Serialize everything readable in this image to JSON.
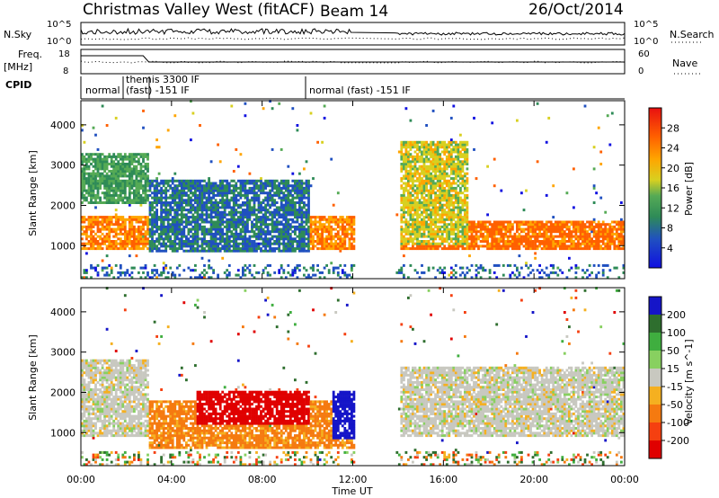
{
  "header": {
    "station": "Christmas Valley West (fitACF)",
    "beam": "Beam 14",
    "date": "26/Oct/2014"
  },
  "strips": {
    "nsky_label": "N.Sky",
    "nsearch_label": "N.Search",
    "nsky_ticks": [
      "10^5",
      "10^0"
    ],
    "nsearch_ticks": [
      "10^5",
      "10^0"
    ],
    "freq_label_1": "Freq.",
    "freq_label_2": "[MHz]",
    "freq_ticks": [
      "18",
      "8"
    ],
    "nave_label": "Nave",
    "nave_ticks": [
      "60",
      "0"
    ],
    "cpid_label": "CPID",
    "cpid_segments": [
      {
        "text": "normal",
        "start": 0.0,
        "end": 1.9
      },
      {
        "text": "themis 3300 IF",
        "start": 1.9,
        "end": 3.1
      },
      {
        "text": "(fast) -151 IF",
        "start": 1.9,
        "end": 3.1
      },
      {
        "text": "normal (fast) -151 IF",
        "start": 9.9,
        "end": 24.0
      }
    ]
  },
  "chart_data": [
    {
      "type": "heatmap",
      "title": "",
      "xlabel": "Time UT",
      "ylabel": "Slant Range [km]",
      "xlim": [
        0,
        24
      ],
      "ylim": [
        180,
        4600
      ],
      "x_ticks": [
        "00:00",
        "04:00",
        "08:00",
        "12:00",
        "16:00",
        "20:00",
        "00:00"
      ],
      "y_ticks": [
        1000,
        2000,
        3000,
        4000
      ],
      "colorbar": {
        "label": "Power [dB]",
        "ticks": [
          4,
          8,
          12,
          16,
          20,
          24,
          28
        ],
        "range": [
          0,
          32
        ]
      },
      "data_gaps_hours": [
        [
          12.0,
          13.8
        ]
      ],
      "echo_regions": [
        {
          "name": "main scatter band",
          "t_start": 0.0,
          "t_end": 12.0,
          "range_km": [
            900,
            1700
          ],
          "power_db": 26
        },
        {
          "name": "upper scatter",
          "t_start": 0.0,
          "t_end": 3.0,
          "range_km": [
            2000,
            3300
          ],
          "power_db": 14
        },
        {
          "name": "irregular scatter",
          "t_start": 3.0,
          "t_end": 10.0,
          "range_km": [
            800,
            2600
          ],
          "power_db": 10
        },
        {
          "name": "main scatter band",
          "t_start": 14.0,
          "t_end": 24.0,
          "range_km": [
            900,
            1600
          ],
          "power_db": 28
        },
        {
          "name": "descending streak",
          "t_start": 14.0,
          "t_end": 17.0,
          "range_km": [
            1000,
            3600
          ],
          "power_db": 20
        }
      ]
    },
    {
      "type": "heatmap",
      "title": "",
      "xlabel": "Time UT",
      "ylabel": "Slant Range [km]",
      "xlim": [
        0,
        24
      ],
      "ylim": [
        180,
        4600
      ],
      "x_ticks": [
        "00:00",
        "04:00",
        "08:00",
        "12:00",
        "16:00",
        "20:00",
        "00:00"
      ],
      "y_ticks": [
        1000,
        2000,
        3000,
        4000
      ],
      "colorbar": {
        "label": "Velocity [m s^-1]",
        "ticks": [
          200,
          100,
          50,
          15,
          -15,
          -50,
          -100,
          -200
        ]
      },
      "data_gaps_hours": [
        [
          12.0,
          13.8
        ]
      ],
      "echo_regions": [
        {
          "name": "ground scatter",
          "t_start": 0.0,
          "t_end": 3.0,
          "range_km": [
            900,
            2800
          ],
          "velocity": 0
        },
        {
          "name": "negative flow",
          "t_start": 3.0,
          "t_end": 12.0,
          "range_km": [
            600,
            1800
          ],
          "velocity": -60
        },
        {
          "name": "strong negative flow",
          "t_start": 5.0,
          "t_end": 10.0,
          "range_km": [
            1200,
            2000
          ],
          "velocity": -200
        },
        {
          "name": "positive flow",
          "t_start": 11.0,
          "t_end": 12.0,
          "range_km": [
            800,
            2000
          ],
          "velocity": 200
        },
        {
          "name": "ground scatter",
          "t_start": 14.0,
          "t_end": 24.0,
          "range_km": [
            900,
            2600
          ],
          "velocity": 0
        }
      ]
    }
  ]
}
